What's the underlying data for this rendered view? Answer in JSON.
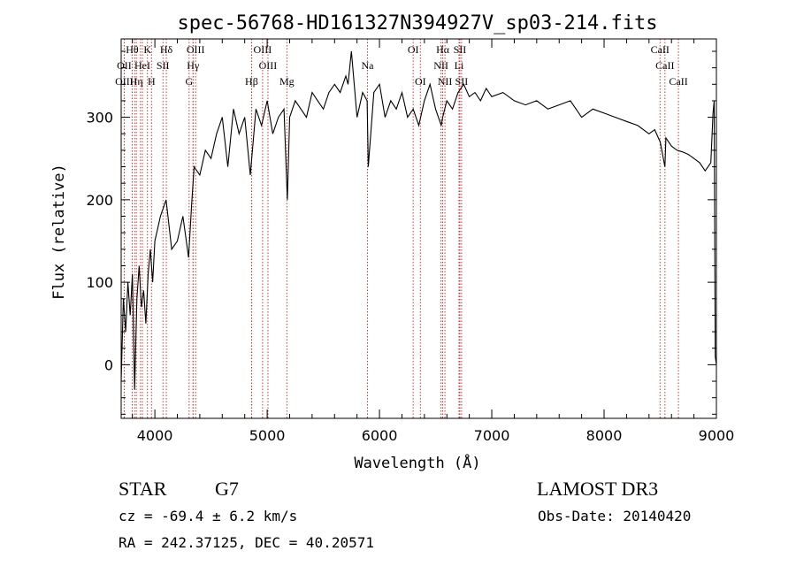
{
  "chart_data": {
    "type": "line",
    "title": "spec-56768-HD161327N394927V_sp03-214.fits",
    "xlabel": "Wavelength (Å)",
    "ylabel": "Flux (relative)",
    "xlim": [
      3700,
      9000
    ],
    "ylim": [
      -65,
      395
    ],
    "xticks": [
      4000,
      5000,
      6000,
      7000,
      8000,
      9000
    ],
    "yticks": [
      0,
      100,
      200,
      300
    ],
    "series": [
      {
        "name": "flux",
        "x": [
          3700,
          3720,
          3740,
          3760,
          3780,
          3800,
          3820,
          3840,
          3860,
          3880,
          3900,
          3920,
          3940,
          3960,
          3980,
          4000,
          4050,
          4100,
          4150,
          4200,
          4250,
          4300,
          4330,
          4350,
          4400,
          4450,
          4500,
          4550,
          4600,
          4650,
          4700,
          4750,
          4800,
          4850,
          4900,
          4950,
          5000,
          5050,
          5100,
          5150,
          5180,
          5200,
          5250,
          5300,
          5350,
          5400,
          5450,
          5500,
          5550,
          5600,
          5650,
          5700,
          5720,
          5750,
          5800,
          5850,
          5890,
          5900,
          5950,
          6000,
          6050,
          6100,
          6150,
          6200,
          6250,
          6300,
          6350,
          6400,
          6450,
          6500,
          6550,
          6563,
          6600,
          6650,
          6700,
          6750,
          6800,
          6850,
          6900,
          6950,
          7000,
          7100,
          7200,
          7300,
          7400,
          7500,
          7600,
          7700,
          7800,
          7900,
          8000,
          8100,
          8200,
          8300,
          8400,
          8450,
          8500,
          8542,
          8550,
          8600,
          8650,
          8700,
          8750,
          8800,
          8850,
          8900,
          8950,
          8970,
          8980,
          8990,
          9000
        ],
        "y": [
          -20,
          80,
          40,
          100,
          60,
          110,
          -30,
          80,
          120,
          70,
          90,
          50,
          110,
          140,
          100,
          150,
          180,
          200,
          140,
          150,
          180,
          130,
          200,
          240,
          230,
          260,
          250,
          280,
          300,
          240,
          310,
          280,
          300,
          230,
          310,
          290,
          320,
          280,
          300,
          310,
          200,
          300,
          320,
          310,
          300,
          330,
          320,
          310,
          330,
          340,
          330,
          350,
          340,
          380,
          300,
          330,
          320,
          240,
          330,
          340,
          300,
          320,
          310,
          330,
          300,
          310,
          290,
          320,
          340,
          310,
          290,
          300,
          320,
          310,
          330,
          340,
          325,
          330,
          320,
          335,
          325,
          330,
          320,
          315,
          320,
          310,
          315,
          320,
          300,
          310,
          305,
          300,
          295,
          290,
          280,
          285,
          270,
          240,
          275,
          265,
          260,
          258,
          255,
          250,
          245,
          235,
          245,
          305,
          320,
          10,
          0
        ]
      }
    ],
    "lines_row1": [
      {
        "label": "Hθ",
        "x": 3798
      },
      {
        "label": "K",
        "x": 3934
      },
      {
        "label": "Hδ",
        "x": 4102
      },
      {
        "label": "OIII",
        "x": 4363
      },
      {
        "label": "OIII",
        "x": 4959
      },
      {
        "label": "OI",
        "x": 6300
      },
      {
        "label": "Hα",
        "x": 6563
      },
      {
        "label": "SII",
        "x": 6716
      },
      {
        "label": "CaII",
        "x": 8498
      }
    ],
    "lines_row2": [
      {
        "label": "OII",
        "x": 3727
      },
      {
        "label": "HeI",
        "x": 3889
      },
      {
        "label": "SII",
        "x": 4072
      },
      {
        "label": "Hγ",
        "x": 4340
      },
      {
        "label": "OIII",
        "x": 5007
      },
      {
        "label": "Na",
        "x": 5893
      },
      {
        "label": "NII",
        "x": 6548
      },
      {
        "label": "Li",
        "x": 6708
      },
      {
        "label": "CaII",
        "x": 8542
      }
    ],
    "lines_row3": [
      {
        "label": "OIII",
        "x": 3727
      },
      {
        "label": "Hη",
        "x": 3835
      },
      {
        "label": "H",
        "x": 3970
      },
      {
        "label": "G",
        "x": 4305
      },
      {
        "label": "Hβ",
        "x": 4861
      },
      {
        "label": "Mg",
        "x": 5175
      },
      {
        "label": "OI",
        "x": 6364
      },
      {
        "label": "NII",
        "x": 6583
      },
      {
        "label": "SII",
        "x": 6731
      },
      {
        "label": "CaII",
        "x": 8662
      }
    ],
    "extra_lines_x": [
      3820,
      3872,
      4340,
      4861
    ]
  },
  "footer": {
    "object_type": "STAR",
    "subclass": "G7",
    "cz": "cz = -69.4 ± 6.2 km/s",
    "coords": "RA = 242.37125, DEC =  40.20571",
    "survey": "LAMOST DR3",
    "obs_date": "Obs-Date: 20140420"
  },
  "colors": {
    "line": "#000000",
    "line_marker": "#cc2222",
    "background": "#ffffff"
  }
}
